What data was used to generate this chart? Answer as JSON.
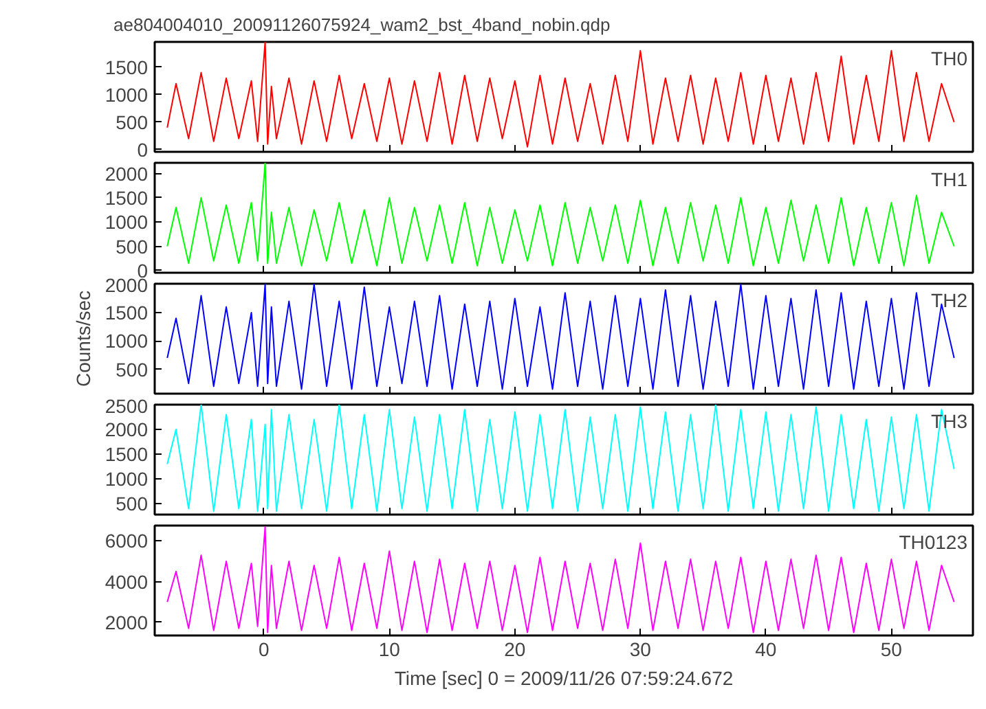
{
  "chart_data": [
    {
      "type": "line",
      "title": "ae804004010_20091126075924_wam2_bst_4band_nobin.qdp",
      "x": [
        -7.7,
        -7,
        -6,
        -5,
        -4,
        -3,
        -2,
        -1,
        -0.5,
        0.1,
        0.3,
        0.6,
        1,
        2,
        3,
        4,
        5,
        6,
        7,
        8,
        9,
        10,
        11,
        12,
        13,
        14,
        15,
        16,
        17,
        18,
        19,
        20,
        21,
        22,
        23,
        24,
        25,
        26,
        27,
        28,
        29,
        30,
        31,
        32,
        33,
        34,
        35,
        36,
        37,
        38,
        39,
        40,
        41,
        42,
        43,
        44,
        45,
        46,
        47,
        48,
        49,
        50,
        51,
        52,
        53,
        54,
        55
      ],
      "xlim": [
        -8.7,
        56.5
      ],
      "xticks": [
        0,
        10,
        20,
        30,
        40,
        50
      ],
      "ylim": [
        -40,
        1960
      ],
      "yticks": [
        0,
        500,
        1000,
        1500
      ],
      "tick_labels": "y",
      "grid": false,
      "series": [
        {
          "name": "TH0",
          "color": "#ff0000",
          "values": [
            400,
            1200,
            200,
            1400,
            150,
            1300,
            200,
            1250,
            150,
            1960,
            100,
            1150,
            200,
            1300,
            100,
            1250,
            150,
            1350,
            200,
            1200,
            150,
            1300,
            100,
            1250,
            150,
            1400,
            100,
            1350,
            150,
            1300,
            200,
            1250,
            50,
            1350,
            100,
            1300,
            150,
            1200,
            100,
            1350,
            150,
            1800,
            100,
            1300,
            150,
            1350,
            100,
            1300,
            150,
            1400,
            100,
            1350,
            150,
            1300,
            100,
            1400,
            150,
            1700,
            100,
            1350,
            150,
            1800,
            150,
            1400,
            150,
            1200,
            500
          ]
        }
      ]
    },
    {
      "type": "line",
      "x": [
        -7.7,
        -7,
        -6,
        -5,
        -4,
        -3,
        -2,
        -1,
        -0.5,
        0.1,
        0.3,
        0.6,
        1,
        2,
        3,
        4,
        5,
        6,
        7,
        8,
        9,
        10,
        11,
        12,
        13,
        14,
        15,
        16,
        17,
        18,
        19,
        20,
        21,
        22,
        23,
        24,
        25,
        26,
        27,
        28,
        29,
        30,
        31,
        32,
        33,
        34,
        35,
        36,
        37,
        38,
        39,
        40,
        41,
        42,
        43,
        44,
        45,
        46,
        47,
        48,
        49,
        50,
        51,
        52,
        53,
        54,
        55
      ],
      "xlim": [
        -8.7,
        56.5
      ],
      "xticks": [
        0,
        10,
        20,
        30,
        40,
        50
      ],
      "ylim": [
        -45,
        2220
      ],
      "yticks": [
        0,
        500,
        1000,
        1500,
        2000
      ],
      "tick_labels": "y",
      "grid": false,
      "series": [
        {
          "name": "TH1",
          "color": "#00ff00",
          "values": [
            500,
            1300,
            150,
            1500,
            200,
            1350,
            150,
            1400,
            200,
            2220,
            150,
            1200,
            150,
            1300,
            100,
            1250,
            200,
            1400,
            150,
            1250,
            100,
            1500,
            150,
            1300,
            200,
            1350,
            150,
            1400,
            100,
            1300,
            150,
            1250,
            200,
            1350,
            100,
            1400,
            150,
            1300,
            200,
            1350,
            150,
            1450,
            100,
            1300,
            150,
            1400,
            200,
            1350,
            150,
            1500,
            100,
            1300,
            150,
            1450,
            200,
            1350,
            150,
            1500,
            100,
            1300,
            150,
            1400,
            100,
            1550,
            150,
            1200,
            500
          ]
        }
      ]
    },
    {
      "type": "line",
      "ylabel": "Counts/sec",
      "x": [
        -7.7,
        -7,
        -6,
        -5,
        -4,
        -3,
        -2,
        -1,
        -0.5,
        0.1,
        0.3,
        0.6,
        1,
        2,
        3,
        4,
        5,
        6,
        7,
        8,
        9,
        10,
        11,
        12,
        13,
        14,
        15,
        16,
        17,
        18,
        19,
        20,
        21,
        22,
        23,
        24,
        25,
        26,
        27,
        28,
        29,
        30,
        31,
        32,
        33,
        34,
        35,
        36,
        37,
        38,
        39,
        40,
        41,
        42,
        43,
        44,
        45,
        46,
        47,
        48,
        49,
        50,
        51,
        52,
        53,
        54,
        55
      ],
      "xlim": [
        -8.7,
        56.5
      ],
      "xticks": [
        0,
        10,
        20,
        30,
        40,
        50
      ],
      "ylim": [
        70,
        2010
      ],
      "yticks": [
        500,
        1000,
        1500,
        2000
      ],
      "tick_labels": "y",
      "grid": false,
      "series": [
        {
          "name": "TH2",
          "color": "#0000ff",
          "values": [
            700,
            1400,
            250,
            1800,
            200,
            1600,
            250,
            1500,
            200,
            2000,
            250,
            1600,
            200,
            1700,
            150,
            2000,
            200,
            1700,
            150,
            1950,
            200,
            1600,
            250,
            1700,
            200,
            1800,
            150,
            1650,
            200,
            1700,
            150,
            1750,
            200,
            1600,
            150,
            1850,
            200,
            1700,
            150,
            1800,
            200,
            1750,
            150,
            1900,
            200,
            1800,
            150,
            1700,
            200,
            2000,
            150,
            1800,
            200,
            1750,
            150,
            1900,
            200,
            1850,
            150,
            1700,
            200,
            1750,
            150,
            1850,
            200,
            1650,
            700
          ]
        }
      ]
    },
    {
      "type": "line",
      "x": [
        -7.7,
        -7,
        -6,
        -5,
        -4,
        -3,
        -2,
        -1,
        -0.5,
        0.1,
        0.3,
        0.6,
        1,
        2,
        3,
        4,
        5,
        6,
        7,
        8,
        9,
        10,
        11,
        12,
        13,
        14,
        15,
        16,
        17,
        18,
        19,
        20,
        21,
        22,
        23,
        24,
        25,
        26,
        27,
        28,
        29,
        30,
        31,
        32,
        33,
        34,
        35,
        36,
        37,
        38,
        39,
        40,
        41,
        42,
        43,
        44,
        45,
        46,
        47,
        48,
        49,
        50,
        51,
        52,
        53,
        54,
        55
      ],
      "xlim": [
        -8.7,
        56.5
      ],
      "xticks": [
        0,
        10,
        20,
        30,
        40,
        50
      ],
      "ylim": [
        280,
        2500
      ],
      "yticks": [
        500,
        1000,
        1500,
        2000,
        2500
      ],
      "tick_labels": "y",
      "grid": false,
      "series": [
        {
          "name": "TH3",
          "color": "#00ffff",
          "values": [
            1300,
            2000,
            400,
            2500,
            350,
            2300,
            400,
            2200,
            350,
            2100,
            400,
            2400,
            350,
            2300,
            400,
            2200,
            350,
            2500,
            400,
            2300,
            350,
            2400,
            400,
            2250,
            350,
            2300,
            400,
            2400,
            350,
            2200,
            400,
            2350,
            350,
            2300,
            400,
            2400,
            350,
            2250,
            400,
            2300,
            350,
            2450,
            400,
            2350,
            350,
            2300,
            400,
            2500,
            350,
            2400,
            400,
            2350,
            350,
            2300,
            400,
            2450,
            350,
            2300,
            400,
            2200,
            350,
            2250,
            400,
            2300,
            350,
            2400,
            1200
          ]
        }
      ]
    },
    {
      "type": "line",
      "xlabel": "Time [sec] 0 = 2009/11/26 07:59:24.672",
      "x": [
        -7.7,
        -7,
        -6,
        -5,
        -4,
        -3,
        -2,
        -1,
        -0.5,
        0.1,
        0.3,
        0.6,
        1,
        2,
        3,
        4,
        5,
        6,
        7,
        8,
        9,
        10,
        11,
        12,
        13,
        14,
        15,
        16,
        17,
        18,
        19,
        20,
        21,
        22,
        23,
        24,
        25,
        26,
        27,
        28,
        29,
        30,
        31,
        32,
        33,
        34,
        35,
        36,
        37,
        38,
        39,
        40,
        41,
        42,
        43,
        44,
        45,
        46,
        47,
        48,
        49,
        50,
        51,
        52,
        53,
        54,
        55
      ],
      "xlim": [
        -8.7,
        56.5
      ],
      "xticks": [
        0,
        10,
        20,
        30,
        40,
        50
      ],
      "ylim": [
        1350,
        6760
      ],
      "yticks": [
        2000,
        4000,
        6000
      ],
      "grid": false,
      "series": [
        {
          "name": "TH0123",
          "color": "#ff00ff",
          "values": [
            3000,
            4500,
            1700,
            5300,
            1600,
            5000,
            1700,
            4900,
            1800,
            6700,
            1500,
            4800,
            1700,
            5000,
            1600,
            4800,
            1700,
            5200,
            1600,
            4900,
            1700,
            5500,
            1600,
            5000,
            1500,
            5100,
            1600,
            4900,
            1700,
            5000,
            1600,
            4800,
            1500,
            5200,
            1600,
            5000,
            1700,
            4900,
            1600,
            5100,
            1700,
            5900,
            1600,
            5000,
            1700,
            5100,
            1600,
            5000,
            1700,
            5200,
            1500,
            5000,
            1600,
            5100,
            1700,
            5300,
            1600,
            5200,
            1500,
            4900,
            1600,
            5100,
            1700,
            5000,
            1600,
            4800,
            3000
          ]
        }
      ]
    }
  ]
}
